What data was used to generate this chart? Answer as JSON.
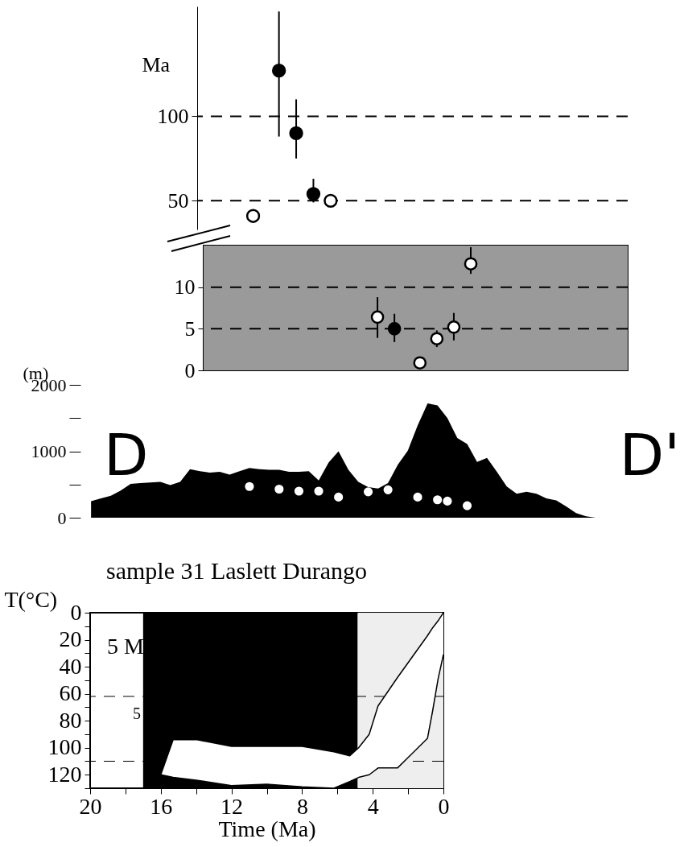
{
  "chart_data": [
    {
      "type": "scatter",
      "ylabel": "Ma",
      "categories": [
        null,
        null,
        null,
        null,
        null,
        null,
        null,
        null,
        null,
        null,
        null,
        null,
        null,
        null,
        null,
        null,
        null,
        null,
        null,
        null,
        null,
        null,
        null,
        null,
        null,
        null,
        null,
        null,
        null,
        null,
        null,
        null,
        null,
        null,
        null,
        null,
        null,
        null,
        null,
        null,
        null,
        null,
        null,
        null,
        null,
        null,
        null,
        null,
        null,
        null
      ],
      "ylim": [
        33,
        165
      ],
      "yticks": [
        50,
        100
      ],
      "tick_labels": "y",
      "marker": "circle",
      "ref_lines": [
        {
          "axis": "y",
          "value": 100,
          "line_style": "dashed"
        },
        {
          "axis": "y",
          "value": 50,
          "line_style": "dashed"
        }
      ],
      "series": [
        {
          "color": "#000000",
          "values": [
            null,
            null,
            null,
            null,
            null,
            null,
            null,
            null,
            null,
            127,
            null,
            90,
            null,
            54,
            null,
            null,
            null,
            null,
            null,
            null,
            null,
            null,
            null,
            null,
            null,
            null,
            null,
            null,
            null,
            null,
            null,
            null,
            null,
            null,
            null,
            null,
            null,
            null,
            null,
            null,
            null,
            null,
            null,
            null,
            null,
            null,
            null,
            null,
            null,
            null
          ],
          "errors": [
            null,
            null,
            null,
            null,
            null,
            null,
            null,
            null,
            null,
            [
              88,
              162
            ],
            null,
            [
              75,
              110
            ],
            null,
            [
              49,
              63
            ],
            null,
            null,
            null,
            null,
            null,
            null,
            null,
            null,
            null,
            null,
            null,
            null,
            null,
            null,
            null,
            null,
            null,
            null,
            null,
            null,
            null,
            null,
            null,
            null,
            null,
            null,
            null,
            null,
            null,
            null,
            null,
            null,
            null,
            null,
            null,
            null
          ]
        },
        {
          "color": "#ffffff",
          "values": [
            null,
            null,
            null,
            null,
            null,
            null,
            41,
            null,
            null,
            null,
            null,
            null,
            null,
            null,
            null,
            50,
            null,
            null,
            null,
            null,
            null,
            null,
            null,
            null,
            null,
            null,
            null,
            null,
            null,
            null,
            null,
            null,
            null,
            null,
            null,
            null,
            null,
            null,
            null,
            null,
            null,
            null,
            null,
            null,
            null,
            null,
            null,
            null,
            null,
            null
          ]
        }
      ]
    },
    {
      "type": "scatter",
      "categories": [
        null,
        null,
        null,
        null,
        null,
        null,
        null,
        null,
        null,
        null,
        null,
        null,
        null,
        null,
        null,
        null,
        null,
        null,
        null,
        null,
        null,
        null,
        null,
        null,
        null,
        null,
        null,
        null,
        null,
        null,
        null,
        null,
        null,
        null,
        null,
        null,
        null,
        null,
        null,
        null,
        null,
        null,
        null,
        null,
        null,
        null,
        null,
        null,
        null,
        null
      ],
      "ylim": [
        0,
        15
      ],
      "yticks": [
        0,
        5,
        10
      ],
      "tick_labels": "y",
      "marker": "circle",
      "bands": [
        {
          "axis": "y",
          "from": 0,
          "to": 15,
          "color": "#9a9a9a"
        }
      ],
      "ref_lines": [
        {
          "axis": "y",
          "value": 10,
          "line_style": "dashed"
        },
        {
          "axis": "y",
          "value": 5,
          "line_style": "dashed"
        }
      ],
      "series": [
        {
          "color": "#000000",
          "values": [
            null,
            null,
            null,
            null,
            null,
            null,
            null,
            null,
            null,
            null,
            null,
            null,
            null,
            null,
            null,
            null,
            null,
            null,
            null,
            null,
            null,
            null,
            5,
            null,
            null,
            null,
            null,
            null,
            null,
            null,
            null,
            null,
            null,
            null,
            null,
            null,
            null,
            null,
            null,
            null,
            null,
            null,
            null,
            null,
            null,
            null,
            null,
            null,
            null,
            null
          ],
          "errors": [
            null,
            null,
            null,
            null,
            null,
            null,
            null,
            null,
            null,
            null,
            null,
            null,
            null,
            null,
            null,
            null,
            null,
            null,
            null,
            null,
            null,
            null,
            [
              3.4,
              6.8
            ],
            null,
            null,
            null,
            null,
            null,
            null,
            null,
            null,
            null,
            null,
            null,
            null,
            null,
            null,
            null,
            null,
            null,
            null,
            null,
            null,
            null,
            null,
            null,
            null,
            null,
            null,
            null
          ]
        },
        {
          "color": "#ffffff",
          "values": [
            null,
            null,
            null,
            null,
            null,
            null,
            null,
            null,
            null,
            null,
            null,
            null,
            null,
            null,
            null,
            null,
            null,
            null,
            null,
            null,
            6.4,
            null,
            null,
            null,
            null,
            0.9,
            null,
            3.8,
            null,
            5.2,
            null,
            12.8,
            null,
            null,
            null,
            null,
            null,
            null,
            null,
            null,
            null,
            null,
            null,
            null,
            null,
            null,
            null,
            null,
            null,
            null
          ],
          "errors": [
            null,
            null,
            null,
            null,
            null,
            null,
            null,
            null,
            null,
            null,
            null,
            null,
            null,
            null,
            null,
            null,
            null,
            null,
            null,
            null,
            [
              3.9,
              8.8
            ],
            null,
            null,
            null,
            null,
            null,
            null,
            [
              2.8,
              4.8
            ],
            null,
            [
              3.6,
              6.9
            ],
            null,
            [
              11.6,
              14.8
            ],
            null,
            null,
            null,
            null,
            null,
            null,
            null,
            null,
            null,
            null,
            null,
            null,
            null,
            null,
            null,
            null,
            null,
            null
          ]
        }
      ]
    },
    {
      "type": "area",
      "ylabel": "(m)",
      "categories": [
        null,
        null,
        null,
        null,
        null,
        null,
        null,
        null,
        null,
        null,
        null,
        null,
        null,
        null,
        null,
        null,
        null,
        null,
        null,
        null,
        null,
        null,
        null,
        null,
        null,
        null,
        null,
        null,
        null,
        null,
        null,
        null,
        null,
        null,
        null,
        null,
        null,
        null,
        null,
        null,
        null,
        null,
        null,
        null,
        null,
        null,
        null,
        null,
        null,
        null,
        null,
        null,
        null,
        null,
        null,
        null,
        null,
        null,
        null,
        null
      ],
      "ylim": [
        0,
        2000
      ],
      "yticks": [
        0,
        {
          "value": 500,
          "label": null
        },
        1000,
        {
          "value": 1500,
          "label": null
        },
        2000
      ],
      "tick_labels": "y",
      "annotations": [
        "D",
        "D'"
      ],
      "series": [
        {
          "color": "#000000",
          "values": [
            250,
            290,
            330,
            410,
            510,
            520,
            530,
            540,
            490,
            540,
            730,
            700,
            680,
            690,
            650,
            700,
            750,
            730,
            720,
            720,
            690,
            690,
            700,
            560,
            830,
            1000,
            720,
            540,
            460,
            440,
            520,
            800,
            1010,
            1390,
            1720,
            1690,
            1500,
            1200,
            1110,
            840,
            900,
            690,
            470,
            360,
            390,
            360,
            290,
            260,
            170,
            70,
            20,
            0,
            0,
            0,
            0,
            0,
            0,
            0,
            0,
            0
          ]
        },
        {
          "type": "scatter",
          "color": "#ffffff",
          "values": [
            null,
            null,
            null,
            null,
            null,
            null,
            null,
            null,
            null,
            null,
            null,
            null,
            null,
            null,
            null,
            null,
            470,
            null,
            null,
            430,
            null,
            400,
            null,
            400,
            null,
            310,
            null,
            null,
            390,
            null,
            420,
            null,
            null,
            310,
            null,
            270,
            250,
            null,
            180,
            null,
            null,
            null,
            null,
            null,
            null,
            null,
            null,
            null,
            null,
            null,
            null,
            null,
            null,
            null,
            null,
            null,
            null,
            null,
            null,
            null
          ]
        }
      ]
    },
    {
      "type": "line",
      "title": "sample 31 Laslett Durango",
      "xlabel": "Time (Ma)",
      "ylabel": "T(°C)",
      "xlim": [
        20,
        0
      ],
      "xticks": [
        20,
        {
          "value": 18,
          "label": null
        },
        16,
        {
          "value": 14,
          "label": null
        },
        12,
        {
          "value": 10,
          "label": null
        },
        8,
        {
          "value": 6,
          "label": null
        },
        4,
        {
          "value": 2,
          "label": null
        },
        0
      ],
      "ylim": [
        130,
        0
      ],
      "yticks": [
        0,
        {
          "value": 10,
          "label": null
        },
        20,
        {
          "value": 30,
          "label": null
        },
        40,
        {
          "value": 50,
          "label": null
        },
        60,
        {
          "value": 70,
          "label": null
        },
        80,
        {
          "value": 90,
          "label": null
        },
        100,
        {
          "value": 110,
          "label": null
        },
        120,
        {
          "value": 130,
          "label": null
        }
      ],
      "annotations": [
        "5 M",
        "5"
      ],
      "ref_lines": [
        {
          "axis": "y",
          "value": 110,
          "line_style": "dashed"
        },
        {
          "axis": "y",
          "value": 62,
          "line_style": "dashed"
        }
      ],
      "bands": [
        {
          "axis": "x",
          "from": 17,
          "to": 4.85,
          "color": "#000000"
        },
        {
          "axis": "x",
          "from": 4.85,
          "to": 0,
          "color": "#eeeeee"
        }
      ],
      "series": [
        {
          "color": "#000000",
          "x": [
            16,
            15.3,
            14,
            12,
            10,
            8,
            6.2,
            5.3,
            4.8,
            4.2,
            3.7,
            2.6,
            0.9,
            0.6,
            0.3,
            0
          ],
          "values": [
            120,
            94,
            94,
            99,
            99,
            99,
            103,
            106,
            100,
            90,
            69,
            48,
            17,
            11,
            6,
            0
          ],
          "lower": [
            120,
            94,
            94,
            99,
            99,
            99,
            103,
            106,
            100,
            90,
            69,
            48,
            17,
            11,
            6,
            0
          ],
          "upper": [
            120,
            122,
            124,
            128,
            127,
            129,
            130,
            125,
            122,
            120,
            115,
            115,
            93,
            72,
            49,
            31
          ]
        },
        {
          "color": "#000000",
          "x": [
            16,
            15.3,
            14,
            12,
            10,
            8,
            6.2,
            5.3,
            4.8,
            4.2,
            3.7,
            2.6,
            0.9,
            0.6,
            0.3,
            0
          ],
          "values": [
            120,
            122,
            124,
            128,
            127,
            129,
            130,
            125,
            122,
            120,
            115,
            115,
            93,
            72,
            49,
            31
          ]
        }
      ]
    }
  ]
}
